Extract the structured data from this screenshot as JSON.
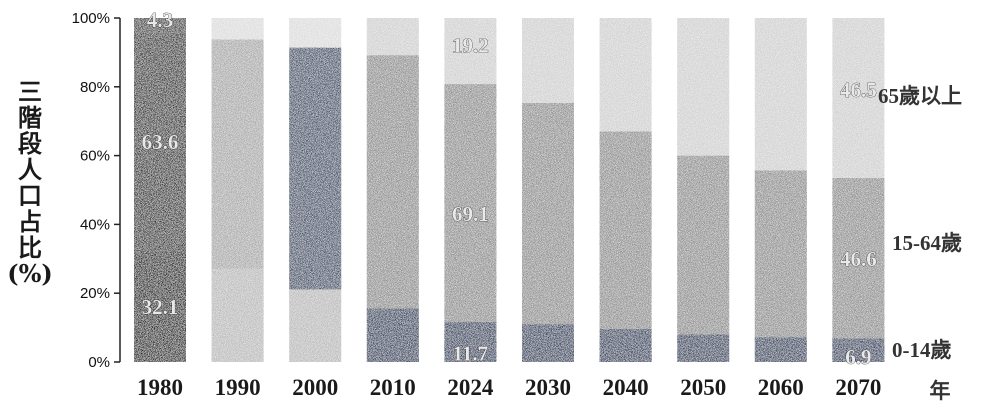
{
  "chart_data": {
    "type": "bar",
    "stacked": true,
    "percent": true,
    "categories": [
      "1980",
      "1990",
      "2000",
      "2010",
      "2024",
      "2030",
      "2040",
      "2050",
      "2060",
      "2070"
    ],
    "series": [
      {
        "name": "0-14歲",
        "values": [
          32.1,
          27.1,
          21.1,
          15.6,
          11.7,
          11.0,
          9.6,
          8.0,
          7.2,
          6.9
        ],
        "color": "#2b3a5c"
      },
      {
        "name": "15-64歲",
        "values": [
          63.6,
          66.7,
          70.3,
          73.6,
          69.1,
          64.3,
          57.4,
          52.0,
          48.5,
          46.6
        ],
        "color": "#8d8d8d"
      },
      {
        "name": "65歲以上",
        "values": [
          4.3,
          6.2,
          8.6,
          10.8,
          19.2,
          24.7,
          33.0,
          40.0,
          44.3,
          46.5
        ],
        "color": "#cfcfcf"
      }
    ],
    "data_labels": {
      "1980": [
        "32.1",
        "63.6",
        "4.3"
      ],
      "2024": [
        "11.7",
        "69.1",
        "19.2"
      ],
      "2070": [
        "6.9",
        "46.6",
        "46.5"
      ]
    },
    "title": "",
    "xlabel": "年",
    "ylabel": "三階段人口占比(%)",
    "ylabel_chars": [
      "三",
      "階",
      "段",
      "人",
      "口",
      "占",
      "比",
      "(%)"
    ],
    "ylim": [
      0,
      100
    ],
    "yticks": [
      "0%",
      "20%",
      "40%",
      "60%",
      "80%",
      "100%"
    ],
    "grid": false,
    "legend_placement": "right"
  }
}
